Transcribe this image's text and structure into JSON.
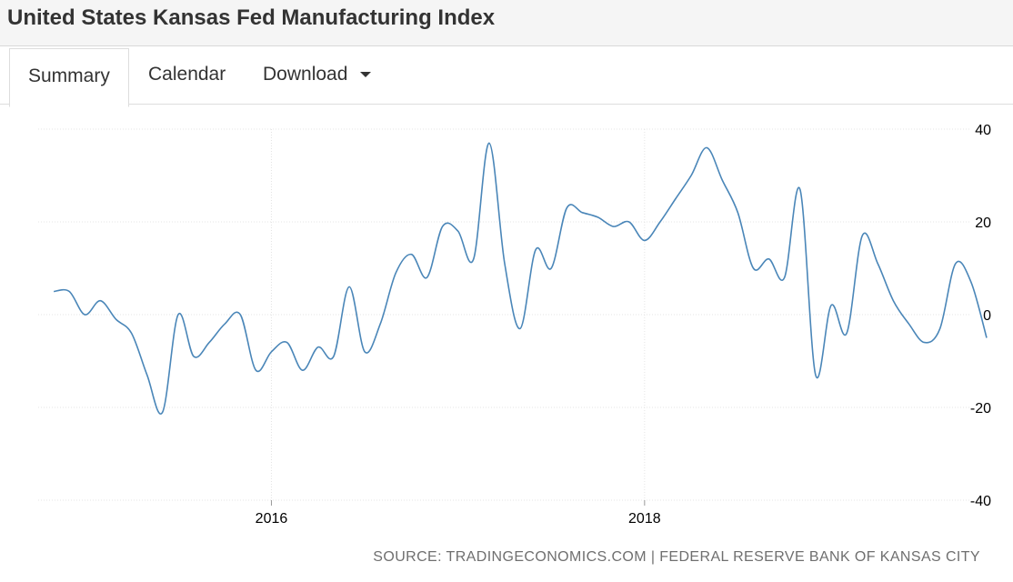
{
  "header": {
    "title": "United States Kansas Fed Manufacturing Index"
  },
  "tabs": [
    {
      "label": "Summary",
      "active": true
    },
    {
      "label": "Calendar",
      "active": false
    },
    {
      "label": "Download",
      "active": false,
      "has_dropdown": true
    }
  ],
  "colors": {
    "line": "#4a86b8",
    "grid": "#e4e4e4",
    "axis": "#000000"
  },
  "source_text": "SOURCE: TRADINGECONOMICS.COM | FEDERAL RESERVE BANK OF KANSAS CITY",
  "chart_data": {
    "type": "line",
    "title": "",
    "xlabel": "",
    "ylabel": "",
    "ylim": [
      -40,
      40
    ],
    "yticks": [
      40,
      20,
      0,
      -20,
      -40
    ],
    "xticks": [
      {
        "label": "2016",
        "date": "2016-01"
      },
      {
        "label": "2018",
        "date": "2018-01"
      }
    ],
    "xlim": [
      "2014-10",
      "2019-11"
    ],
    "grid": true,
    "series": [
      {
        "name": "",
        "points": [
          [
            "2014-11",
            5
          ],
          [
            "2014-12",
            5
          ],
          [
            "2015-01",
            0
          ],
          [
            "2015-02",
            3
          ],
          [
            "2015-03",
            -1
          ],
          [
            "2015-04",
            -4
          ],
          [
            "2015-05",
            -13
          ],
          [
            "2015-06",
            -21
          ],
          [
            "2015-07",
            0
          ],
          [
            "2015-08",
            -9
          ],
          [
            "2015-09",
            -6
          ],
          [
            "2015-10",
            -2
          ],
          [
            "2015-11",
            0
          ],
          [
            "2015-12",
            -12
          ],
          [
            "2016-01",
            -8
          ],
          [
            "2016-02",
            -6
          ],
          [
            "2016-03",
            -12
          ],
          [
            "2016-04",
            -7
          ],
          [
            "2016-05",
            -9
          ],
          [
            "2016-06",
            6
          ],
          [
            "2016-07",
            -8
          ],
          [
            "2016-08",
            -2
          ],
          [
            "2016-09",
            9
          ],
          [
            "2016-10",
            13
          ],
          [
            "2016-11",
            8
          ],
          [
            "2016-12",
            19
          ],
          [
            "2017-01",
            18
          ],
          [
            "2017-02",
            12
          ],
          [
            "2017-03",
            37
          ],
          [
            "2017-04",
            11
          ],
          [
            "2017-05",
            -3
          ],
          [
            "2017-06",
            14
          ],
          [
            "2017-07",
            10
          ],
          [
            "2017-08",
            23
          ],
          [
            "2017-09",
            22
          ],
          [
            "2017-10",
            21
          ],
          [
            "2017-11",
            19
          ],
          [
            "2017-12",
            20
          ],
          [
            "2018-01",
            16
          ],
          [
            "2018-02",
            20
          ],
          [
            "2018-03",
            25
          ],
          [
            "2018-04",
            30
          ],
          [
            "2018-05",
            36
          ],
          [
            "2018-06",
            29
          ],
          [
            "2018-07",
            22
          ],
          [
            "2018-08",
            10
          ],
          [
            "2018-09",
            12
          ],
          [
            "2018-10",
            8
          ],
          [
            "2018-11",
            27
          ],
          [
            "2018-12",
            -13
          ],
          [
            "2019-01",
            2
          ],
          [
            "2019-02",
            -4
          ],
          [
            "2019-03",
            17
          ],
          [
            "2019-04",
            11
          ],
          [
            "2019-05",
            3
          ],
          [
            "2019-06",
            -2
          ],
          [
            "2019-07",
            -6
          ],
          [
            "2019-08",
            -3
          ],
          [
            "2019-09",
            11
          ],
          [
            "2019-10",
            7
          ],
          [
            "2019-11",
            -5
          ]
        ]
      }
    ]
  }
}
